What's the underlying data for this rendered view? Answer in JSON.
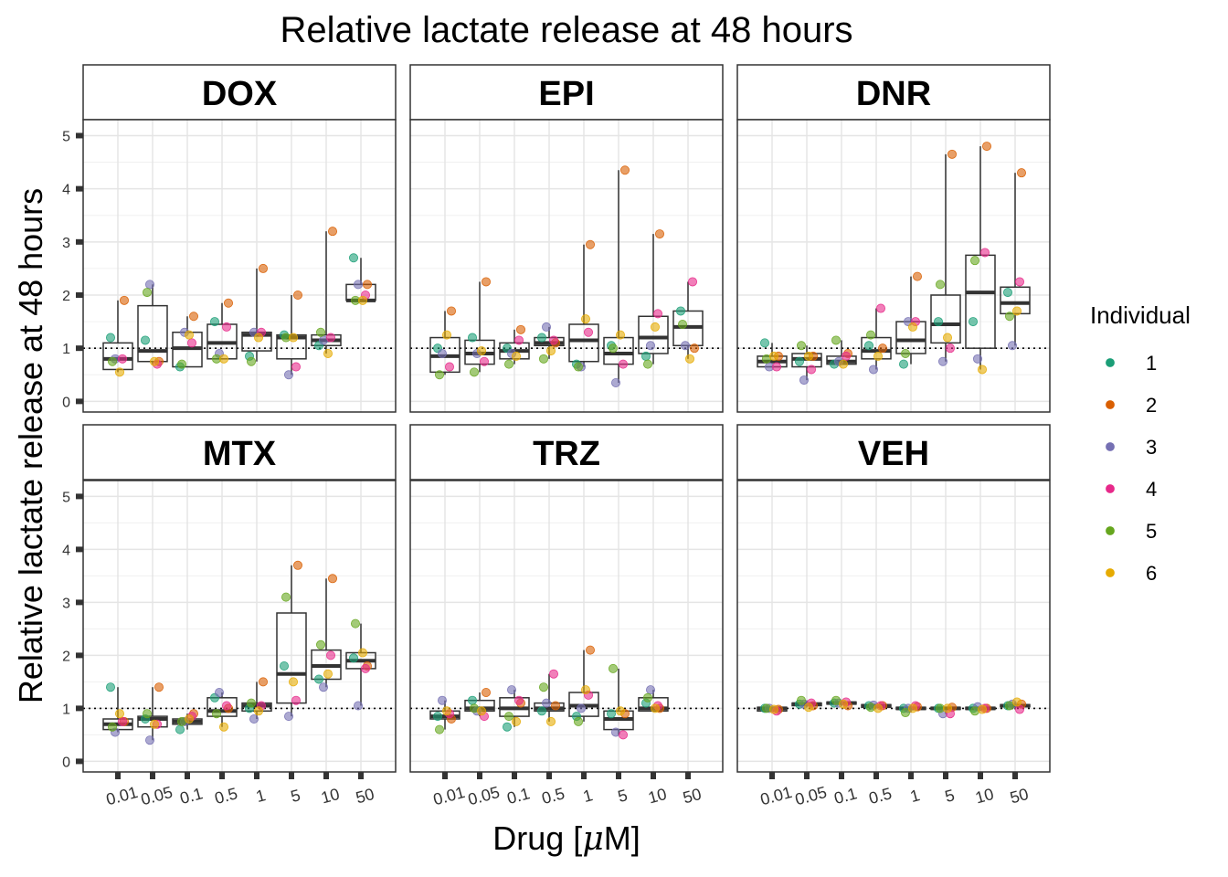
{
  "title": "Relative lactate release at 48 hours",
  "xlabel_text": "Drug [",
  "xlabel_mu": "μ",
  "xlabel_tail": "M]",
  "ylabel": "Relative lactate release at 48 hours",
  "legend": {
    "title": "Individual",
    "items": [
      {
        "label": "1",
        "color": "#1b9e77"
      },
      {
        "label": "2",
        "color": "#d95f02"
      },
      {
        "label": "3",
        "color": "#7570b3"
      },
      {
        "label": "4",
        "color": "#e7298a"
      },
      {
        "label": "5",
        "color": "#66a61e"
      },
      {
        "label": "6",
        "color": "#e6ab02"
      }
    ]
  },
  "chart_data": {
    "type": "box plot with jittered points",
    "categories": [
      "0.01",
      "0.05",
      "0.1",
      "0.5",
      "1",
      "5",
      "10",
      "50"
    ],
    "yticks": [
      0,
      1,
      2,
      3,
      4,
      5
    ],
    "ylim": [
      -0.2,
      5.3
    ],
    "reference_line_y": 1,
    "panels": [
      {
        "label": "DOX",
        "boxes": [
          [
            0.6,
            0.8,
            1.1
          ],
          [
            0.75,
            0.95,
            1.8
          ],
          [
            0.65,
            1.0,
            1.3
          ],
          [
            0.8,
            1.1,
            1.45
          ],
          [
            0.95,
            1.25,
            1.3
          ],
          [
            0.8,
            1.2,
            1.25
          ],
          [
            1.05,
            1.15,
            1.25
          ],
          [
            1.9,
            1.9,
            2.2
          ]
        ],
        "points": [
          [
            1.2,
            1.9,
            0.8,
            0.8,
            0.75,
            0.55
          ],
          [
            1.15,
            0.75,
            2.2,
            0.7,
            2.05,
            0.75
          ],
          [
            0.65,
            1.6,
            1.3,
            1.1,
            0.7,
            1.25
          ],
          [
            1.5,
            1.85,
            0.9,
            1.4,
            0.8,
            0.8
          ],
          [
            0.85,
            2.5,
            1.3,
            1.3,
            0.75,
            1.2
          ],
          [
            1.25,
            2.0,
            0.5,
            0.65,
            1.2,
            1.2
          ],
          [
            1.05,
            3.2,
            1.15,
            1.2,
            1.3,
            0.9
          ],
          [
            2.7,
            2.2,
            2.2,
            2.0,
            1.9,
            1.9
          ]
        ]
      },
      {
        "label": "EPI",
        "boxes": [
          [
            0.55,
            0.85,
            1.2
          ],
          [
            0.7,
            0.9,
            1.15
          ],
          [
            0.8,
            0.95,
            1.1
          ],
          [
            1.05,
            1.1,
            1.2
          ],
          [
            0.75,
            1.15,
            1.45
          ],
          [
            0.7,
            0.9,
            1.2
          ],
          [
            0.9,
            1.2,
            1.6
          ],
          [
            1.05,
            1.4,
            1.7
          ]
        ],
        "points": [
          [
            1.0,
            1.7,
            0.9,
            0.65,
            0.5,
            1.25
          ],
          [
            1.2,
            2.25,
            0.9,
            0.75,
            0.55,
            0.95
          ],
          [
            1.0,
            1.35,
            0.9,
            1.15,
            0.7,
            0.85
          ],
          [
            1.2,
            1.1,
            1.4,
            1.15,
            0.8,
            0.95
          ],
          [
            0.7,
            2.95,
            0.65,
            1.3,
            0.65,
            1.55
          ],
          [
            1.05,
            4.35,
            0.35,
            0.7,
            1.0,
            1.25
          ],
          [
            0.85,
            3.15,
            1.05,
            1.65,
            0.7,
            1.4
          ],
          [
            1.7,
            1.0,
            1.05,
            2.25,
            1.45,
            0.8
          ]
        ]
      },
      {
        "label": "DNR",
        "boxes": [
          [
            0.65,
            0.75,
            0.85
          ],
          [
            0.65,
            0.8,
            0.9
          ],
          [
            0.7,
            0.75,
            0.85
          ],
          [
            0.8,
            0.95,
            1.2
          ],
          [
            0.9,
            1.15,
            1.5
          ],
          [
            1.1,
            1.45,
            2.0
          ],
          [
            1.0,
            2.05,
            2.75
          ],
          [
            1.65,
            1.85,
            2.15
          ]
        ],
        "points": [
          [
            1.1,
            0.85,
            0.65,
            0.65,
            0.8,
            0.85
          ],
          [
            0.75,
            0.85,
            0.4,
            0.6,
            1.05,
            0.85
          ],
          [
            0.7,
            0.9,
            0.75,
            0.85,
            1.15,
            0.7
          ],
          [
            1.05,
            1.0,
            0.6,
            1.75,
            1.25,
            0.85
          ],
          [
            0.7,
            2.35,
            1.5,
            1.5,
            0.9,
            1.4
          ],
          [
            1.5,
            4.65,
            0.75,
            1.0,
            2.2,
            1.2
          ],
          [
            1.5,
            4.8,
            0.8,
            2.8,
            2.65,
            0.6
          ],
          [
            2.05,
            4.3,
            1.05,
            2.25,
            1.6,
            1.7
          ]
        ]
      },
      {
        "label": "MTX",
        "boxes": [
          [
            0.6,
            0.7,
            0.8
          ],
          [
            0.65,
            0.8,
            0.85
          ],
          [
            0.7,
            0.75,
            0.8
          ],
          [
            0.85,
            0.95,
            1.2
          ],
          [
            0.95,
            1.05,
            1.1
          ],
          [
            1.1,
            1.65,
            2.8
          ],
          [
            1.55,
            1.8,
            2.1
          ],
          [
            1.75,
            1.9,
            2.05
          ]
        ],
        "points": [
          [
            1.4,
            0.75,
            0.55,
            0.75,
            0.65,
            0.9
          ],
          [
            0.8,
            1.4,
            0.4,
            0.7,
            0.9,
            0.7
          ],
          [
            0.6,
            0.9,
            0.75,
            0.85,
            0.75,
            0.8
          ],
          [
            1.2,
            1.0,
            1.3,
            1.05,
            0.9,
            0.65
          ],
          [
            1.0,
            1.5,
            0.8,
            1.05,
            1.1,
            0.95
          ],
          [
            1.8,
            3.7,
            0.85,
            1.15,
            3.1,
            1.5
          ],
          [
            1.55,
            3.45,
            1.4,
            2.0,
            2.2,
            1.65
          ],
          [
            1.95,
            1.8,
            1.05,
            1.75,
            2.6,
            2.05
          ]
        ]
      },
      {
        "label": "TRZ",
        "boxes": [
          [
            0.8,
            0.85,
            0.95
          ],
          [
            0.95,
            1.0,
            1.15
          ],
          [
            0.85,
            1.0,
            1.2
          ],
          [
            0.95,
            1.0,
            1.1
          ],
          [
            0.85,
            1.05,
            1.3
          ],
          [
            0.6,
            0.8,
            0.95
          ],
          [
            0.95,
            1.0,
            1.2
          ],
          null
        ],
        "points": [
          [
            0.85,
            0.8,
            1.15,
            0.9,
            0.6,
            0.95
          ],
          [
            1.15,
            1.3,
            0.95,
            0.85,
            1.0,
            0.95
          ],
          [
            0.65,
            1.1,
            1.35,
            1.15,
            0.85,
            0.75
          ],
          [
            0.95,
            1.05,
            1.1,
            1.65,
            1.4,
            0.75
          ],
          [
            0.85,
            2.1,
            1.0,
            1.25,
            0.75,
            1.35
          ],
          [
            0.9,
            0.9,
            0.55,
            0.5,
            1.75,
            0.95
          ],
          [
            1.1,
            1.0,
            1.35,
            1.05,
            1.2,
            1.0
          ],
          []
        ]
      },
      {
        "label": "VEH",
        "boxes": [
          [
            0.95,
            1.0,
            1.02
          ],
          [
            1.05,
            1.08,
            1.1
          ],
          [
            1.08,
            1.1,
            1.12
          ],
          [
            1.02,
            1.05,
            1.07
          ],
          [
            0.98,
            1.0,
            1.02
          ],
          [
            0.98,
            1.0,
            1.02
          ],
          [
            0.98,
            1.0,
            1.02
          ],
          [
            1.03,
            1.05,
            1.07
          ]
        ],
        "points": [
          [
            1.0,
            0.98,
            1.0,
            0.95,
            1.0,
            0.98
          ],
          [
            1.08,
            1.05,
            1.08,
            1.1,
            1.15,
            1.02
          ],
          [
            1.1,
            1.05,
            1.1,
            1.12,
            1.15,
            1.08
          ],
          [
            1.05,
            1.05,
            1.06,
            1.05,
            1.02,
            1.0
          ],
          [
            1.0,
            1.03,
            1.0,
            1.05,
            0.92,
            1.0
          ],
          [
            1.0,
            1.02,
            0.9,
            0.9,
            1.0,
            1.0
          ],
          [
            1.0,
            1.0,
            1.03,
            1.0,
            0.95,
            0.98
          ],
          [
            1.05,
            1.08,
            1.08,
            0.98,
            1.05,
            1.12
          ]
        ]
      }
    ]
  }
}
